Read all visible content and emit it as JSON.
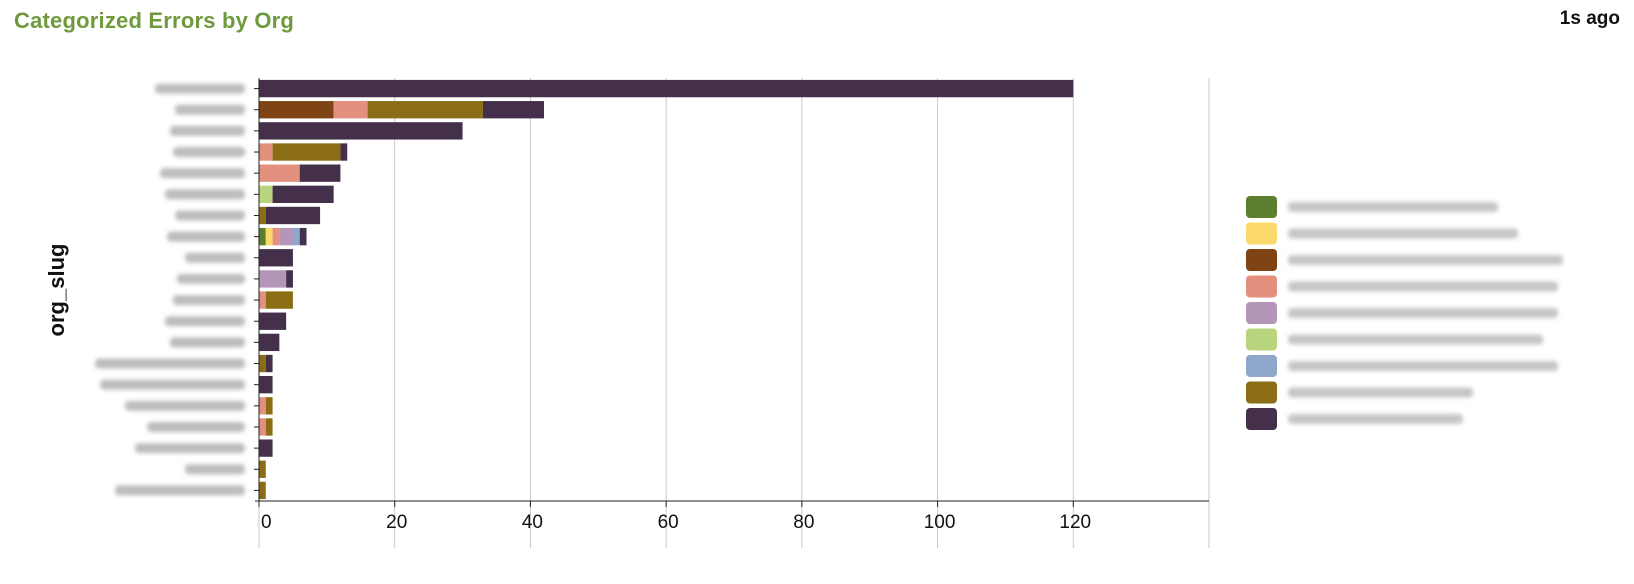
{
  "panel": {
    "title": "Categorized Errors by Org",
    "updated": "1s ago"
  },
  "colors": {
    "title_green": "#6f9a3c"
  },
  "chart_data": {
    "type": "bar",
    "orientation": "horizontal",
    "stacked": true,
    "ylabel": "org_slug",
    "xlabel": "",
    "xlim": [
      0,
      140
    ],
    "xticks": [
      0,
      20,
      40,
      60,
      80,
      100,
      120
    ],
    "grid": true,
    "legend_position": "right",
    "categories": [
      "",
      "",
      "",
      "",
      "",
      "",
      "",
      "",
      "",
      "",
      "",
      "",
      "",
      "",
      "",
      "",
      "",
      "",
      "",
      ""
    ],
    "series": [
      {
        "name": "",
        "color": "#5b7f2e",
        "values": [
          0,
          0,
          0,
          0,
          0,
          0,
          0,
          1,
          0,
          0,
          0,
          0,
          0,
          0,
          0,
          0,
          0,
          0,
          0,
          0
        ]
      },
      {
        "name": "",
        "color": "#fcd96b",
        "values": [
          0,
          0,
          0,
          0,
          0,
          0,
          0,
          1,
          0,
          0,
          0,
          0,
          0,
          0,
          0,
          0,
          0,
          0,
          0,
          0
        ]
      },
      {
        "name": "",
        "color": "#7e4415",
        "values": [
          0,
          11,
          0,
          0,
          0,
          0,
          0,
          0,
          0,
          0,
          0,
          0,
          0,
          0,
          0,
          0,
          0,
          0,
          0,
          0
        ]
      },
      {
        "name": "",
        "color": "#e3907e",
        "values": [
          0,
          5,
          0,
          2,
          6,
          0,
          0,
          1,
          0,
          0,
          1,
          0,
          0,
          0,
          0,
          1,
          1,
          0,
          0,
          0
        ]
      },
      {
        "name": "",
        "color": "#b396b8",
        "values": [
          0,
          0,
          0,
          0,
          0,
          0,
          0,
          2,
          0,
          4,
          0,
          0,
          0,
          0,
          0,
          0,
          0,
          0,
          0,
          0
        ]
      },
      {
        "name": "",
        "color": "#b8d57e",
        "values": [
          0,
          0,
          0,
          0,
          0,
          2,
          0,
          0,
          0,
          0,
          0,
          0,
          0,
          0,
          0,
          0,
          0,
          0,
          0,
          0
        ]
      },
      {
        "name": "",
        "color": "#8fa7cb",
        "values": [
          0,
          0,
          0,
          0,
          0,
          0,
          0,
          1,
          0,
          0,
          0,
          0,
          0,
          0,
          0,
          0,
          0,
          0,
          0,
          0
        ]
      },
      {
        "name": "",
        "color": "#8a6d14",
        "values": [
          0,
          17,
          0,
          10,
          0,
          0,
          1,
          0,
          0,
          0,
          4,
          0,
          0,
          1,
          0,
          1,
          1,
          0,
          1,
          1
        ]
      },
      {
        "name": "",
        "color": "#45304b",
        "values": [
          120,
          9,
          30,
          1,
          6,
          9,
          8,
          1,
          5,
          1,
          0,
          4,
          3,
          1,
          2,
          0,
          0,
          2,
          0,
          0
        ]
      }
    ]
  }
}
